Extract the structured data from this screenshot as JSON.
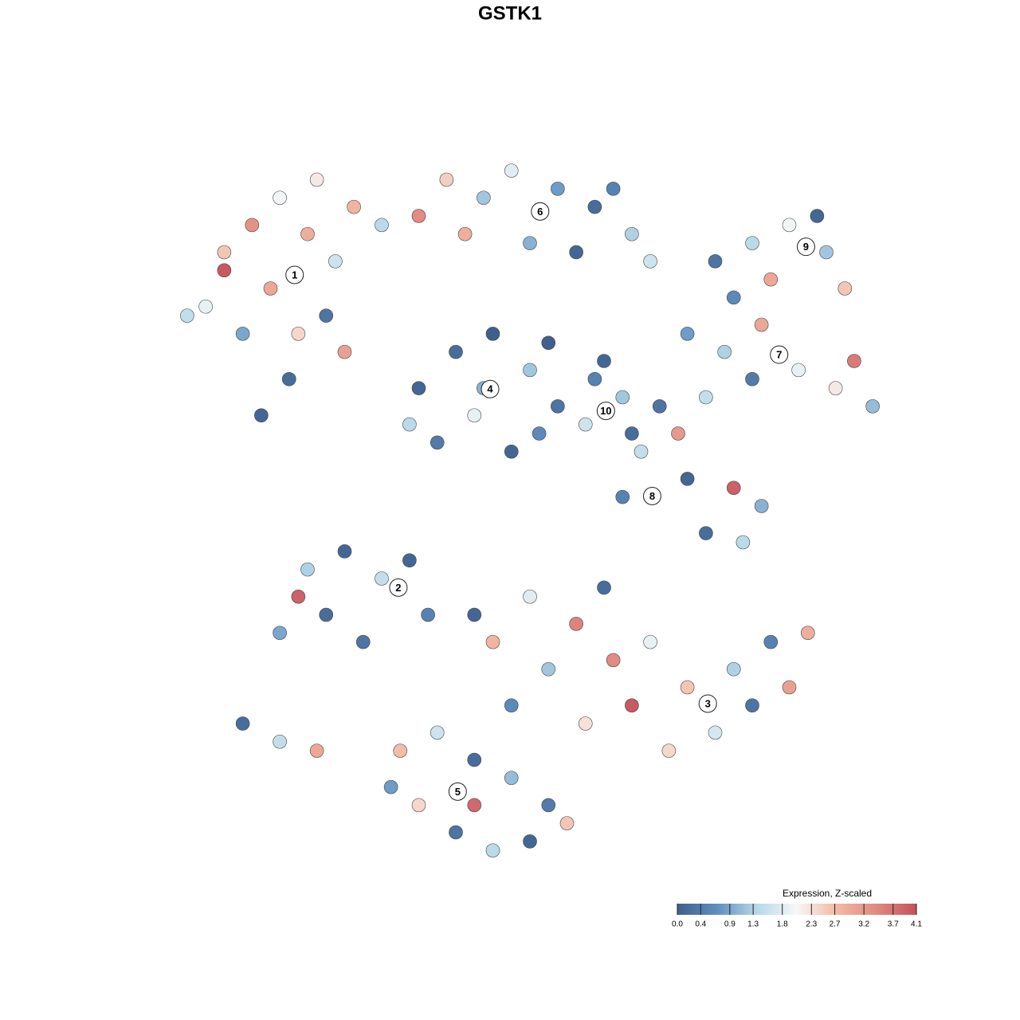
{
  "chart_data": {
    "type": "scatter",
    "title": "GSTK1",
    "colorbar_title": "Expression, Z-scaled",
    "colors": [
      "#3f5f8c",
      "#5f8fc0",
      "#b7d8e8",
      "#f7f7f7",
      "#f3b9a4",
      "#e08a82",
      "#c4505c"
    ],
    "clim": [
      0,
      4.1
    ],
    "cticks": [
      {
        "value": 0,
        "label": "0.0"
      },
      0.4,
      0.9,
      1.3,
      1.8,
      2.3,
      2.7,
      3.2,
      3.7,
      4.1
    ],
    "xlim": [
      -40,
      40
    ],
    "ylim": [
      -40,
      40
    ],
    "x": [
      -33,
      -30,
      -27,
      -24,
      -21,
      -28,
      -35,
      -31,
      -25,
      -22,
      -19,
      -16,
      -26,
      -29,
      -33,
      -20,
      -37,
      -23,
      -9,
      -5,
      -2,
      3,
      7,
      11,
      -7,
      0,
      5,
      9,
      -12,
      13,
      20,
      24,
      28,
      32,
      34,
      26,
      22,
      31,
      17,
      21,
      25,
      29,
      33,
      37,
      24,
      35,
      19,
      -12,
      -8,
      -4,
      0,
      3,
      -6,
      -10,
      -2,
      -5,
      2,
      -13,
      1,
      7,
      10,
      6,
      11,
      8,
      14,
      12,
      17,
      22,
      25,
      19,
      10,
      23,
      16,
      -24,
      -20,
      -16,
      -22,
      -27,
      -18,
      -13,
      -25,
      -11,
      -31,
      -27,
      -23,
      0,
      5,
      8,
      -4,
      2,
      9,
      13,
      17,
      22,
      26,
      30,
      20,
      24,
      15,
      11,
      -6,
      -2,
      6,
      28,
      -14,
      -10,
      -6,
      -2,
      2,
      -12,
      -8,
      -4,
      0,
      4,
      -15,
      -6
    ],
    "y": [
      28,
      31,
      34,
      30,
      27,
      24,
      22,
      19,
      19,
      21,
      33,
      31,
      14,
      10,
      26,
      17,
      21,
      36,
      36,
      34,
      37,
      35,
      33,
      30,
      30,
      29,
      28,
      35,
      32,
      27,
      27,
      29,
      31,
      28,
      24,
      25,
      23,
      32,
      19,
      17,
      20,
      15,
      13,
      11,
      14,
      16,
      12,
      13,
      17,
      19,
      15,
      11,
      10,
      7,
      6,
      13,
      18,
      9,
      8,
      14,
      12,
      9,
      8,
      16,
      11,
      6,
      3,
      2,
      0,
      -3,
      1,
      -4,
      8,
      -7,
      -5,
      -8,
      -12,
      -14,
      -15,
      -6,
      -10,
      -12,
      -24,
      -26,
      -27,
      -10,
      -13,
      -9,
      -15,
      -18,
      -17,
      -15,
      -20,
      -18,
      -15,
      -14,
      -25,
      -22,
      -27,
      -22,
      -12,
      -22,
      -24,
      -20,
      -27,
      -25,
      -28,
      -30,
      -33,
      -33,
      -36,
      -38,
      -37,
      -35,
      -31,
      -33
    ],
    "expression": [
      2.6,
      3.3,
      2.0,
      2.9,
      1.6,
      3.0,
      1.9,
      0.9,
      2.4,
      0.3,
      2.8,
      1.4,
      0.2,
      0.1,
      4.0,
      3.1,
      1.5,
      2.2,
      2.5,
      1.2,
      1.8,
      0.8,
      0.2,
      1.3,
      2.9,
      1.0,
      0.1,
      0.5,
      3.4,
      1.6,
      0.3,
      1.4,
      2.0,
      1.2,
      2.6,
      3.0,
      0.6,
      0.1,
      0.8,
      1.3,
      3.0,
      1.9,
      2.2,
      1.1,
      0.4,
      3.6,
      1.5,
      0.1,
      0.2,
      0.0,
      1.2,
      0.3,
      1.9,
      0.4,
      0.1,
      1.0,
      0.0,
      1.4,
      0.6,
      0.5,
      1.2,
      1.6,
      0.2,
      0.1,
      0.3,
      1.5,
      0.1,
      3.9,
      1.0,
      0.2,
      0.5,
      1.4,
      3.2,
      1.3,
      0.1,
      1.5,
      0.2,
      0.9,
      0.3,
      0.1,
      3.9,
      0.5,
      0.2,
      1.5,
      3.0,
      1.8,
      3.5,
      0.2,
      2.8,
      1.2,
      3.4,
      1.9,
      2.6,
      1.3,
      0.5,
      2.9,
      1.7,
      0.3,
      2.4,
      4.0,
      0.1,
      0.6,
      2.3,
      3.1,
      2.7,
      1.6,
      0.2,
      1.1,
      0.4,
      2.4,
      0.3,
      1.4,
      0.1,
      2.6,
      0.8,
      3.8
    ],
    "clusters": [
      {
        "label": "1",
        "x": -25.4,
        "y": 25.5
      },
      {
        "label": "2",
        "x": -14.2,
        "y": -9.0
      },
      {
        "label": "3",
        "x": 19.2,
        "y": -21.8
      },
      {
        "label": "4",
        "x": -4.3,
        "y": 12.9
      },
      {
        "label": "5",
        "x": -7.8,
        "y": -31.5
      },
      {
        "label": "6",
        "x": 1.1,
        "y": 32.5
      },
      {
        "label": "7",
        "x": 26.9,
        "y": 16.7
      },
      {
        "label": "8",
        "x": 13.2,
        "y": 1.1
      },
      {
        "label": "9",
        "x": 29.8,
        "y": 28.6
      },
      {
        "label": "10",
        "x": 8.2,
        "y": 10.5
      }
    ]
  }
}
